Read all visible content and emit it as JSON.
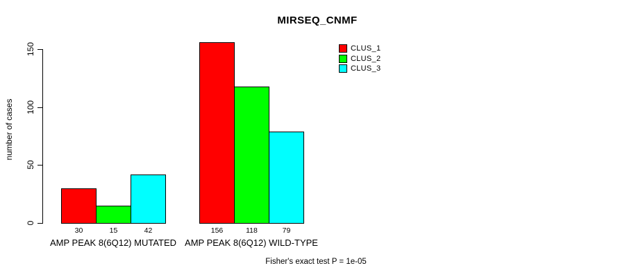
{
  "chart_data": {
    "type": "bar",
    "title": "MIRSEQ_CNMF",
    "ylabel": "number of cases",
    "xlabel": "",
    "categories": [
      "AMP PEAK 8(6Q12) MUTATED",
      "AMP PEAK 8(6Q12) WILD-TYPE"
    ],
    "series": [
      {
        "name": "CLUS_1",
        "color": "#ff0000",
        "values": [
          30,
          156
        ]
      },
      {
        "name": "CLUS_2",
        "color": "#00ff00",
        "values": [
          15,
          118
        ]
      },
      {
        "name": "CLUS_3",
        "color": "#00ffff",
        "values": [
          42,
          79
        ]
      }
    ],
    "bar_value_labels": [
      [
        30,
        15,
        42
      ],
      [
        156,
        118,
        79
      ]
    ],
    "ylim": [
      0,
      150
    ],
    "yticks": [
      0,
      50,
      100,
      150
    ],
    "grid": false,
    "legend_position": "top-right",
    "annotation": "Fisher's exact test P = 1e-05",
    "axis_color": "#000000",
    "bar_border_color": "#000000",
    "background_color": "#ffffff"
  }
}
